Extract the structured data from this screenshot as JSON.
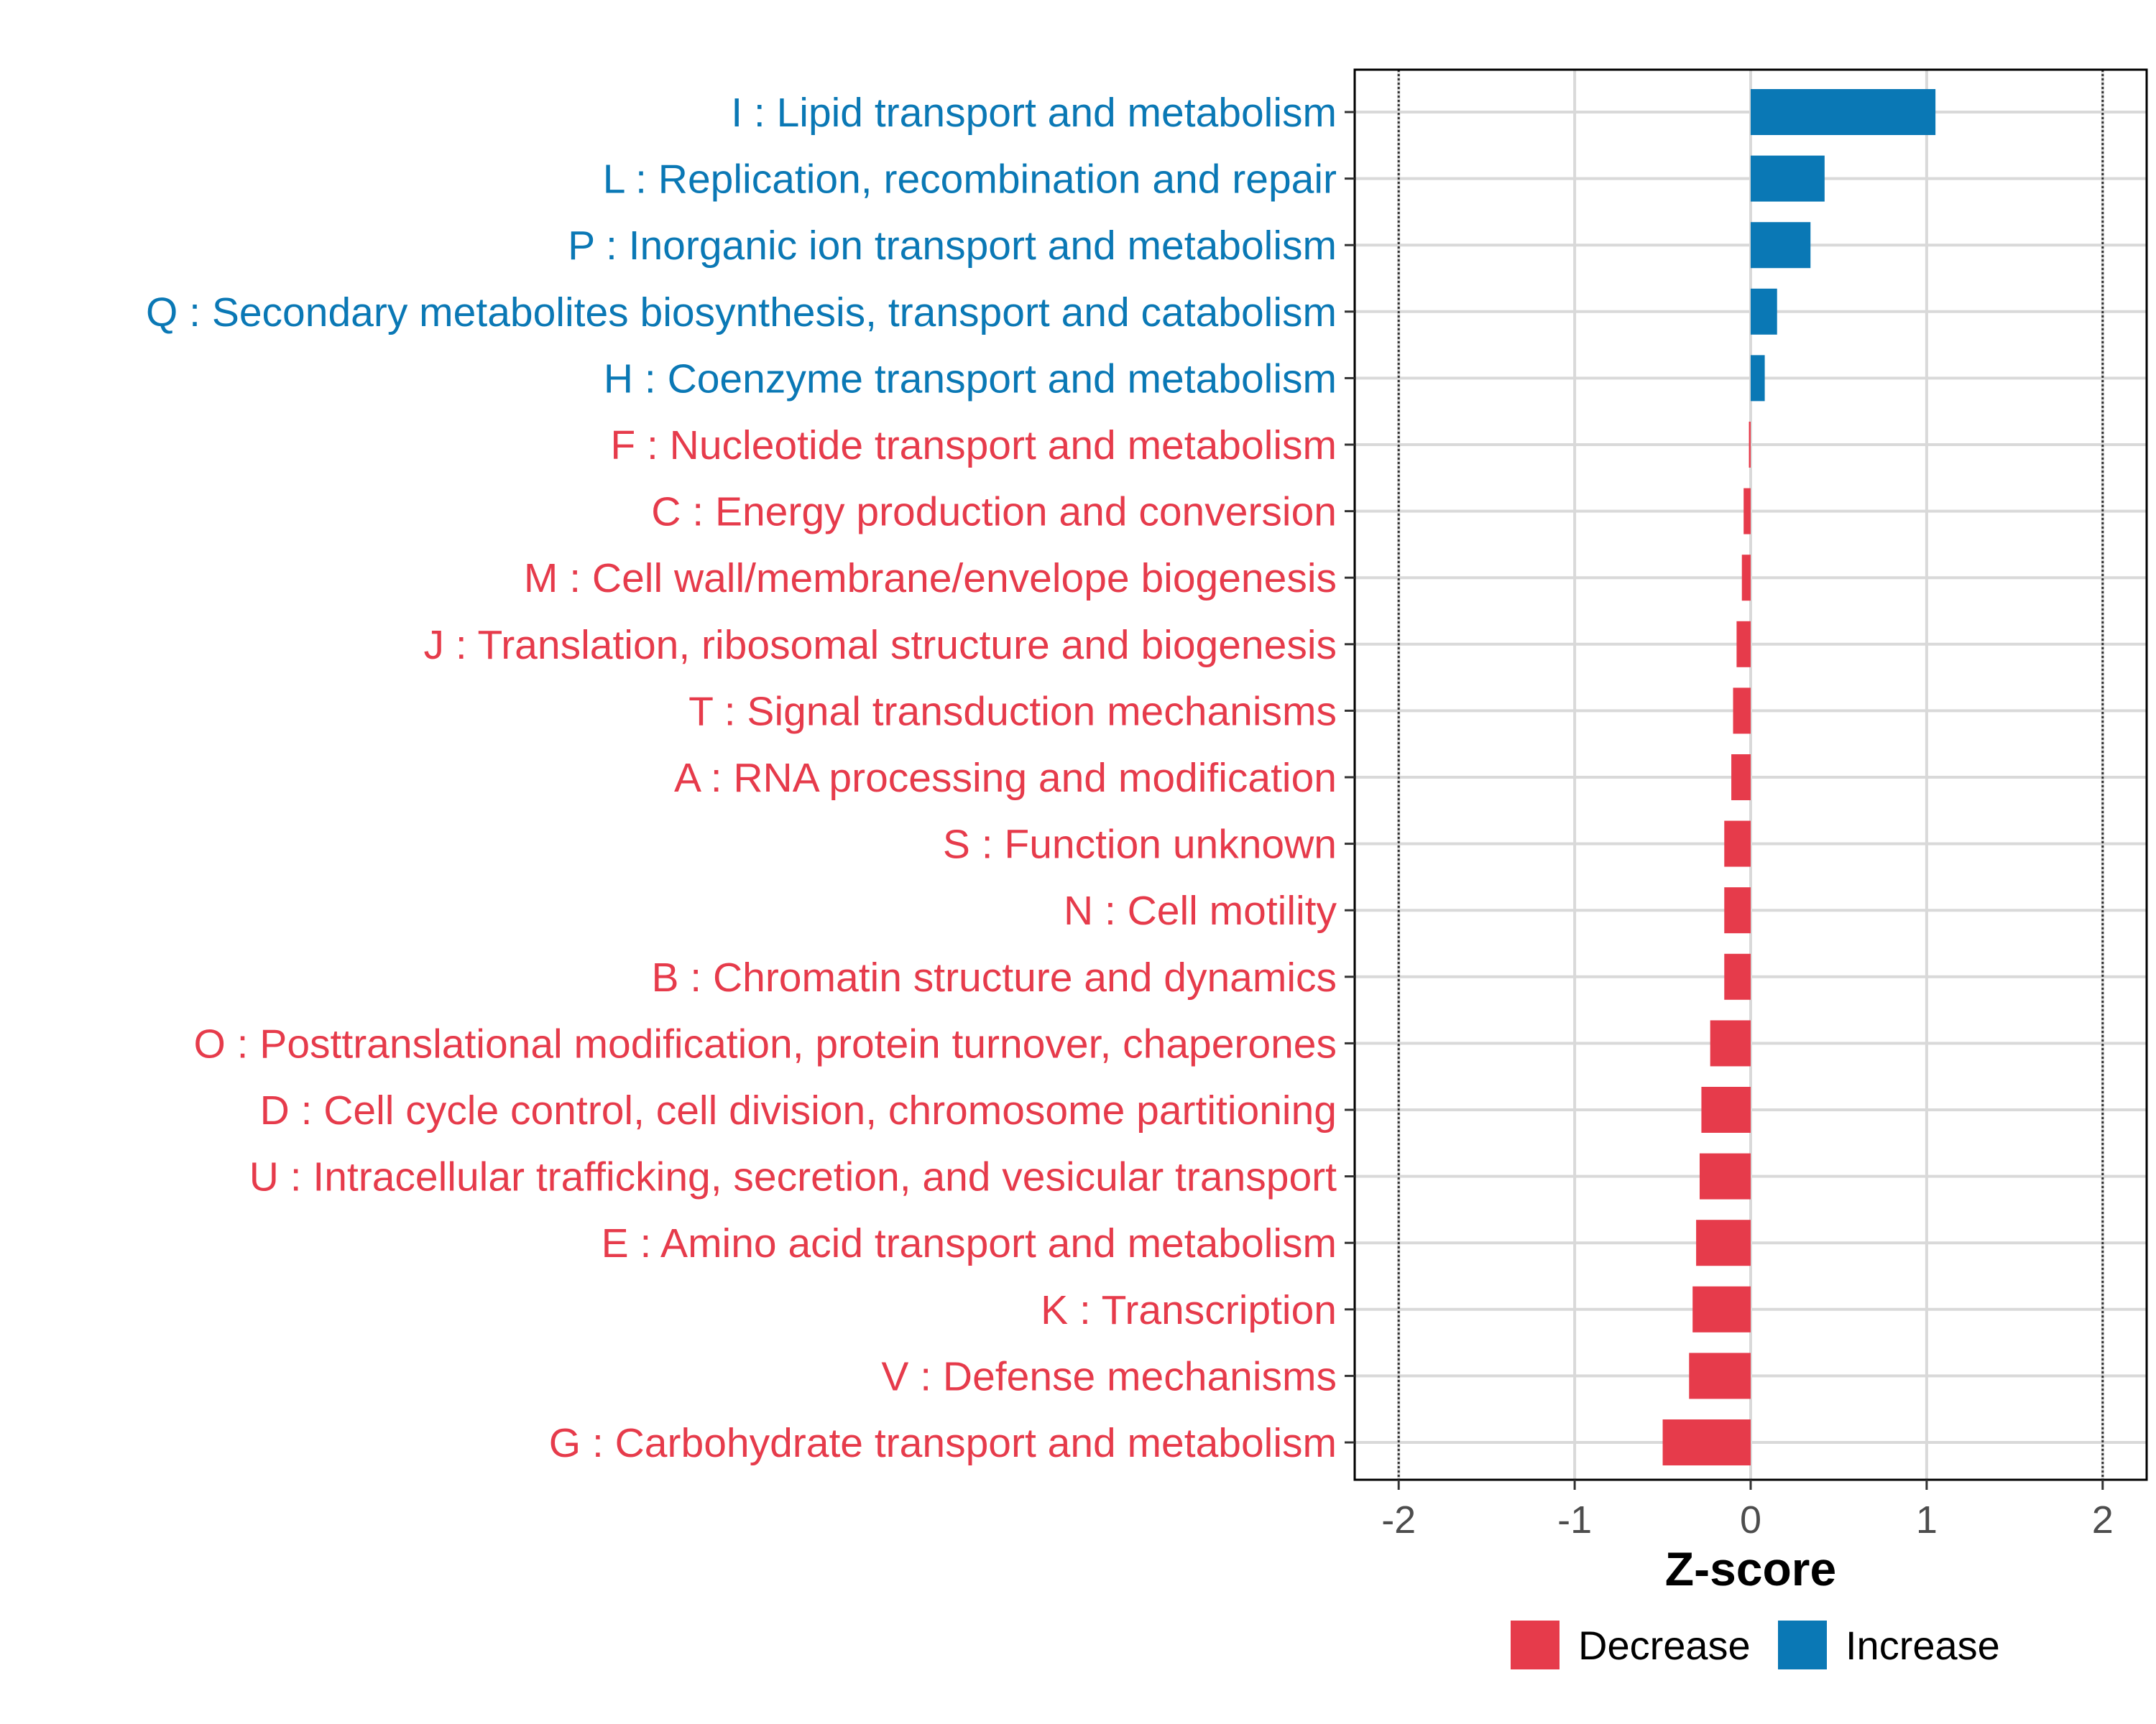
{
  "chart_data": {
    "type": "bar",
    "orientation": "horizontal",
    "xlabel": "Z-score",
    "xlim": [
      -2.25,
      2.25
    ],
    "xticks": [
      -2,
      -1,
      0,
      1,
      2
    ],
    "xtick_labels": [
      "-2",
      "-1",
      "0",
      "1",
      "2"
    ],
    "reference_lines": [
      -2,
      2
    ],
    "grid": true,
    "legend_position": "bottom",
    "colors": {
      "Decrease": "#E63B4B",
      "Increase": "#0A78B5"
    },
    "legend": [
      {
        "label": "Decrease",
        "key": "Decrease"
      },
      {
        "label": "Increase",
        "key": "Increase"
      }
    ],
    "categories": [
      "I : Lipid transport and metabolism",
      "L : Replication, recombination and repair",
      "P : Inorganic ion transport and metabolism",
      "Q : Secondary metabolites biosynthesis, transport and catabolism",
      "H : Coenzyme transport and metabolism",
      "F : Nucleotide transport and metabolism",
      "C : Energy production and conversion",
      "M : Cell wall/membrane/envelope biogenesis",
      "J : Translation, ribosomal structure and biogenesis",
      "T : Signal transduction mechanisms",
      "A : RNA processing and modification",
      "S : Function unknown",
      "N : Cell motility",
      "B : Chromatin structure and dynamics",
      "O : Posttranslational modification, protein turnover, chaperones",
      "D : Cell cycle control, cell division, chromosome partitioning",
      "U : Intracellular trafficking, secretion, and vesicular transport",
      "E : Amino acid transport and metabolism",
      "K : Transcription",
      "V : Defense mechanisms",
      "G : Carbohydrate transport and metabolism"
    ],
    "values": [
      1.05,
      0.42,
      0.34,
      0.15,
      0.08,
      -0.01,
      -0.04,
      -0.05,
      -0.08,
      -0.1,
      -0.11,
      -0.15,
      -0.15,
      -0.15,
      -0.23,
      -0.28,
      -0.29,
      -0.31,
      -0.33,
      -0.35,
      -0.5
    ],
    "groups": [
      "Increase",
      "Increase",
      "Increase",
      "Increase",
      "Increase",
      "Decrease",
      "Decrease",
      "Decrease",
      "Decrease",
      "Decrease",
      "Decrease",
      "Decrease",
      "Decrease",
      "Decrease",
      "Decrease",
      "Decrease",
      "Decrease",
      "Decrease",
      "Decrease",
      "Decrease",
      "Decrease"
    ]
  }
}
